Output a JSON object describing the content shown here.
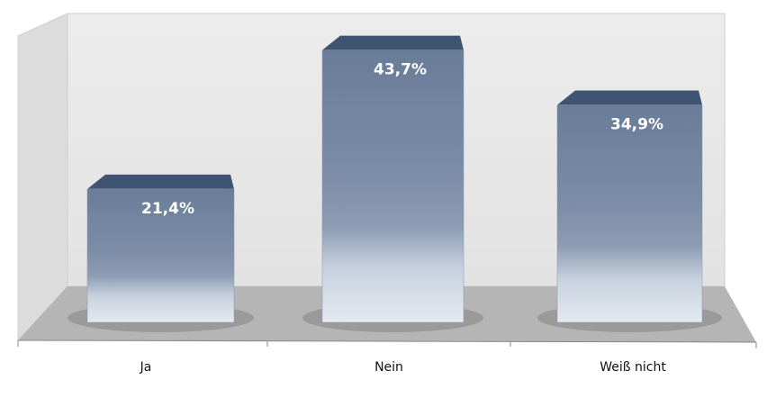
{
  "chart_data": {
    "type": "bar",
    "categories": [
      "Ja",
      "Nein",
      "Weiß nicht"
    ],
    "values": [
      21.4,
      43.7,
      34.9
    ],
    "value_labels": [
      "21,4%",
      "43,7%",
      "34,9%"
    ],
    "ylim": [
      0,
      50
    ]
  }
}
